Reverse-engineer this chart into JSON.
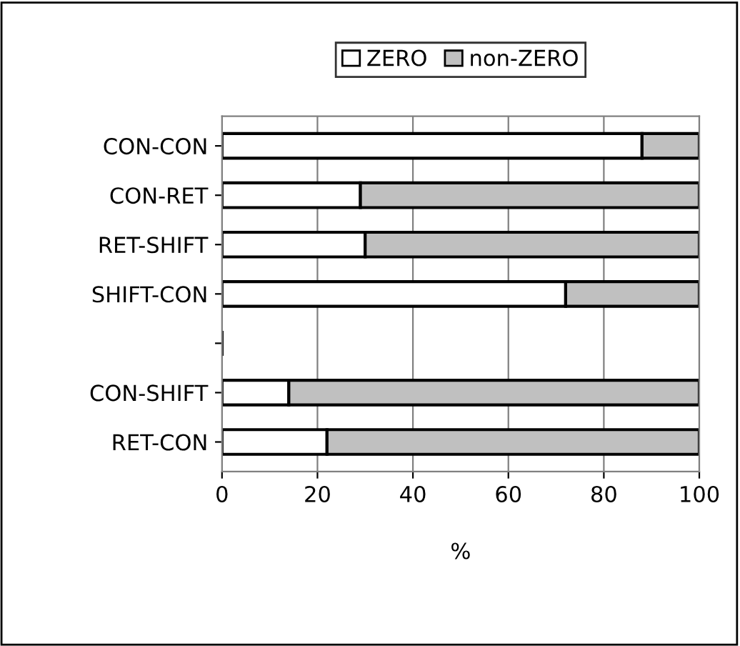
{
  "chart_data": {
    "type": "bar",
    "orientation": "horizontal",
    "stacked": true,
    "xlabel": "%",
    "categories": [
      "CON-CON",
      "CON-RET",
      "RET-SHIFT",
      "SHIFT-CON",
      null,
      "CON-SHIFT",
      "RET-CON"
    ],
    "series": [
      {
        "name": "ZERO",
        "color": "#ffffff",
        "values": [
          88,
          29,
          30,
          72,
          null,
          14,
          22
        ]
      },
      {
        "name": "non-ZERO",
        "color": "#c0c0c0",
        "values": [
          12,
          71,
          70,
          28,
          null,
          86,
          78
        ]
      }
    ],
    "xlim": [
      0,
      100
    ],
    "xticks": [
      0,
      20,
      40,
      60,
      80,
      100
    ],
    "grid": "x",
    "legend": "top"
  }
}
